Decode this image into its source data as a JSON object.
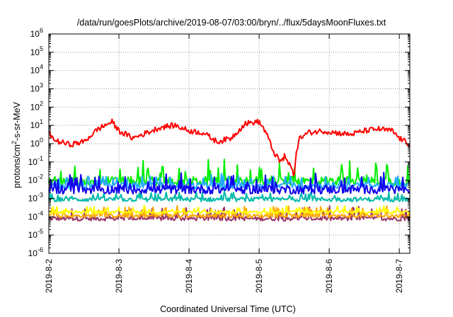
{
  "chart_data": {
    "type": "line",
    "title": "/data/run/goesPlots/archive/2019-08-07/03:00/bryn/../flux/5daysMoonFluxes.txt",
    "xlabel": "Coordinated Universal Time (UTC)",
    "ylabel": {
      "prefix": "protons/cm",
      "sup": "2",
      "suffix": "-s-sr-MeV"
    },
    "ylog": true,
    "ylim_exp": [
      -6,
      6
    ],
    "y_ticks": [
      {
        "base": "10",
        "exp": "-6"
      },
      {
        "base": "10",
        "exp": "-5"
      },
      {
        "base": "10",
        "exp": "-4"
      },
      {
        "base": "10",
        "exp": "-3"
      },
      {
        "base": "10",
        "exp": "-2"
      },
      {
        "base": "10",
        "exp": "-1"
      },
      {
        "base": "10",
        "exp": "0"
      },
      {
        "base": "10",
        "exp": "1"
      },
      {
        "base": "10",
        "exp": "2"
      },
      {
        "base": "10",
        "exp": "3"
      },
      {
        "base": "10",
        "exp": "4"
      },
      {
        "base": "10",
        "exp": "5"
      },
      {
        "base": "10",
        "exp": "6"
      }
    ],
    "x_ticks": [
      "2019-8-2",
      "2019-8-3",
      "2019-8-4",
      "2019-8-5",
      "2019-8-6",
      "2019-8-7"
    ],
    "xlim_days": [
      0,
      5.15
    ],
    "grid": true,
    "series": [
      {
        "color": "#ff0000",
        "base_log": 0.5,
        "noise": 0.15,
        "spike": 0.0,
        "anchors": [
          [
            0,
            0.55
          ],
          [
            0.1,
            0.15
          ],
          [
            0.3,
            -0.05
          ],
          [
            0.5,
            0.1
          ],
          [
            0.7,
            0.8
          ],
          [
            0.9,
            1.2
          ],
          [
            1.0,
            0.7
          ],
          [
            1.2,
            0.3
          ],
          [
            1.4,
            0.6
          ],
          [
            1.6,
            0.9
          ],
          [
            1.8,
            1.0
          ],
          [
            2.0,
            0.7
          ],
          [
            2.2,
            0.6
          ],
          [
            2.4,
            0.1
          ],
          [
            2.6,
            0.3
          ],
          [
            2.8,
            1.1
          ],
          [
            3.0,
            1.2
          ],
          [
            3.1,
            0.6
          ],
          [
            3.2,
            -0.4
          ],
          [
            3.3,
            -1.0
          ],
          [
            3.35,
            -0.6
          ],
          [
            3.45,
            -1.3
          ],
          [
            3.5,
            -1.7
          ],
          [
            3.55,
            0.2
          ],
          [
            3.7,
            0.6
          ],
          [
            3.9,
            0.7
          ],
          [
            4.1,
            0.6
          ],
          [
            4.3,
            0.5
          ],
          [
            4.5,
            0.7
          ],
          [
            4.7,
            0.8
          ],
          [
            4.9,
            0.7
          ],
          [
            5.0,
            0.3
          ],
          [
            5.15,
            -0.05
          ]
        ]
      },
      {
        "color": "#00ee00",
        "base_log": -2.05,
        "noise": 0.25,
        "spike": 0.95
      },
      {
        "color": "#22aaff",
        "base_log": -2.3,
        "noise": 0.18,
        "spike": 0.55
      },
      {
        "color": "#1100ee",
        "base_log": -2.5,
        "noise": 0.25,
        "spike": 0.7
      },
      {
        "color": "#00bbaa",
        "base_log": -3.05,
        "noise": 0.12,
        "spike": 0.35
      },
      {
        "color": "#ffff00",
        "base_log": -3.75,
        "noise": 0.08,
        "spike": 0.3
      },
      {
        "color": "#ffaa00",
        "base_log": -3.95,
        "noise": 0.1,
        "spike": 0.5
      },
      {
        "color": "#993366",
        "base_log": -4.1,
        "noise": 0.12,
        "spike": 0.6
      }
    ]
  }
}
